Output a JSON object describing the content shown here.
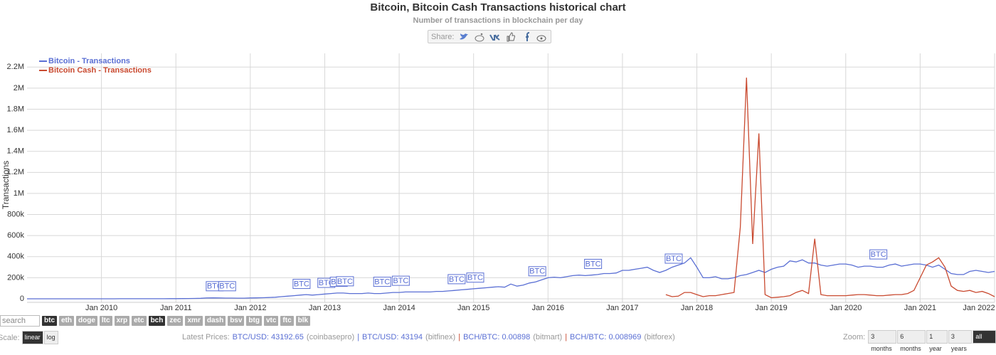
{
  "chart_data": {
    "type": "line",
    "title": "Bitcoin, Bitcoin Cash Transactions historical chart",
    "subtitle": "Number of transactions in blockchain per day",
    "y_label": "Transactions",
    "x": [
      "2009-01",
      "2009-02",
      "2009-03",
      "2009-04",
      "2009-05",
      "2009-06",
      "2009-07",
      "2009-08",
      "2009-09",
      "2009-10",
      "2009-11",
      "2009-12",
      "2010-01",
      "2010-02",
      "2010-03",
      "2010-04",
      "2010-05",
      "2010-06",
      "2010-07",
      "2010-08",
      "2010-09",
      "2010-10",
      "2010-11",
      "2010-12",
      "2011-01",
      "2011-02",
      "2011-03",
      "2011-04",
      "2011-05",
      "2011-06",
      "2011-07",
      "2011-08",
      "2011-09",
      "2011-10",
      "2011-11",
      "2011-12",
      "2012-01",
      "2012-02",
      "2012-03",
      "2012-04",
      "2012-05",
      "2012-06",
      "2012-07",
      "2012-08",
      "2012-09",
      "2012-10",
      "2012-11",
      "2012-12",
      "2013-01",
      "2013-02",
      "2013-03",
      "2013-04",
      "2013-05",
      "2013-06",
      "2013-07",
      "2013-08",
      "2013-09",
      "2013-10",
      "2013-11",
      "2013-12",
      "2014-01",
      "2014-02",
      "2014-03",
      "2014-04",
      "2014-05",
      "2014-06",
      "2014-07",
      "2014-08",
      "2014-09",
      "2014-10",
      "2014-11",
      "2014-12",
      "2015-01",
      "2015-02",
      "2015-03",
      "2015-04",
      "2015-05",
      "2015-06",
      "2015-07",
      "2015-08",
      "2015-09",
      "2015-10",
      "2015-11",
      "2015-12",
      "2016-01",
      "2016-02",
      "2016-03",
      "2016-04",
      "2016-05",
      "2016-06",
      "2016-07",
      "2016-08",
      "2016-09",
      "2016-10",
      "2016-11",
      "2016-12",
      "2017-01",
      "2017-02",
      "2017-03",
      "2017-04",
      "2017-05",
      "2017-06",
      "2017-07",
      "2017-08",
      "2017-09",
      "2017-10",
      "2017-11",
      "2017-12",
      "2018-01",
      "2018-02",
      "2018-03",
      "2018-04",
      "2018-05",
      "2018-06",
      "2018-07",
      "2018-08",
      "2018-09",
      "2018-10",
      "2018-11",
      "2018-12",
      "2019-01",
      "2019-02",
      "2019-03",
      "2019-04",
      "2019-05",
      "2019-06",
      "2019-07",
      "2019-08",
      "2019-09",
      "2019-10",
      "2019-11",
      "2019-12",
      "2020-01",
      "2020-02",
      "2020-03",
      "2020-04",
      "2020-05",
      "2020-06",
      "2020-07",
      "2020-08",
      "2020-09",
      "2020-10",
      "2020-11",
      "2020-12",
      "2021-01",
      "2021-02",
      "2021-03",
      "2021-04",
      "2021-05",
      "2021-06",
      "2021-07",
      "2021-08",
      "2021-09",
      "2021-10",
      "2021-11",
      "2021-12",
      "2022-01"
    ],
    "series": [
      {
        "name": "Bitcoin - Transactions",
        "color": "#5a6fd4",
        "values": [
          100,
          100,
          100,
          100,
          100,
          100,
          100,
          200,
          200,
          200,
          200,
          300,
          300,
          300,
          300,
          400,
          400,
          500,
          600,
          800,
          900,
          1000,
          1000,
          1200,
          1500,
          2000,
          2500,
          3500,
          5000,
          8000,
          9000,
          8000,
          7000,
          7000,
          6000,
          6000,
          8000,
          9000,
          10000,
          12000,
          15000,
          20000,
          25000,
          30000,
          35000,
          40000,
          35000,
          40000,
          45000,
          50000,
          55000,
          55000,
          50000,
          50000,
          50000,
          55000,
          50000,
          50000,
          55000,
          60000,
          60000,
          65000,
          65000,
          65000,
          65000,
          65000,
          70000,
          70000,
          75000,
          80000,
          85000,
          90000,
          95000,
          100000,
          105000,
          110000,
          115000,
          110000,
          140000,
          120000,
          130000,
          150000,
          160000,
          180000,
          200000,
          205000,
          200000,
          210000,
          220000,
          225000,
          220000,
          225000,
          230000,
          240000,
          240000,
          245000,
          270000,
          270000,
          280000,
          290000,
          300000,
          270000,
          250000,
          270000,
          300000,
          320000,
          340000,
          390000,
          300000,
          200000,
          200000,
          210000,
          190000,
          190000,
          200000,
          220000,
          230000,
          250000,
          270000,
          250000,
          280000,
          300000,
          310000,
          360000,
          350000,
          370000,
          340000,
          340000,
          320000,
          310000,
          320000,
          330000,
          330000,
          320000,
          300000,
          310000,
          310000,
          300000,
          300000,
          320000,
          330000,
          310000,
          320000,
          330000,
          330000,
          320000,
          300000,
          320000,
          280000,
          240000,
          230000,
          230000,
          260000,
          270000,
          260000,
          250000,
          260000
        ]
      },
      {
        "name": "Bitcoin Cash - Transactions",
        "color": "#c94a30",
        "values": [
          null,
          null,
          null,
          null,
          null,
          null,
          null,
          null,
          null,
          null,
          null,
          null,
          null,
          null,
          null,
          null,
          null,
          null,
          null,
          null,
          null,
          null,
          null,
          null,
          null,
          null,
          null,
          null,
          null,
          null,
          null,
          null,
          null,
          null,
          null,
          null,
          null,
          null,
          null,
          null,
          null,
          null,
          null,
          null,
          null,
          null,
          null,
          null,
          null,
          null,
          null,
          null,
          null,
          null,
          null,
          null,
          null,
          null,
          null,
          null,
          null,
          null,
          null,
          null,
          null,
          null,
          null,
          null,
          null,
          null,
          null,
          null,
          null,
          null,
          null,
          null,
          null,
          null,
          null,
          null,
          null,
          null,
          null,
          null,
          null,
          null,
          null,
          null,
          null,
          null,
          null,
          null,
          null,
          null,
          null,
          null,
          null,
          null,
          null,
          null,
          null,
          null,
          null,
          40000,
          20000,
          25000,
          60000,
          60000,
          40000,
          20000,
          30000,
          30000,
          40000,
          50000,
          60000,
          680000,
          2100000,
          520000,
          1570000,
          40000,
          10000,
          15000,
          20000,
          30000,
          60000,
          80000,
          50000,
          570000,
          40000,
          30000,
          30000,
          30000,
          30000,
          35000,
          40000,
          40000,
          35000,
          30000,
          30000,
          35000,
          40000,
          40000,
          50000,
          80000,
          200000,
          320000,
          350000,
          390000,
          300000,
          120000,
          80000,
          70000,
          80000,
          60000,
          70000,
          50000,
          20000
        ]
      }
    ],
    "flags": [
      {
        "x": "2011-06",
        "label": "BTC"
      },
      {
        "x": "2011-08",
        "label": "BTC"
      },
      {
        "x": "2012-08",
        "label": "BTC"
      },
      {
        "x": "2012-12",
        "label": "BTC"
      },
      {
        "x": "2013-02",
        "label": "BTC"
      },
      {
        "x": "2013-03",
        "label": "BTC"
      },
      {
        "x": "2013-09",
        "label": "BTC"
      },
      {
        "x": "2013-12",
        "label": "BTC"
      },
      {
        "x": "2014-09",
        "label": "BTC"
      },
      {
        "x": "2014-12",
        "label": "BTC"
      },
      {
        "x": "2015-10",
        "label": "BTC"
      },
      {
        "x": "2016-07",
        "label": "BTC"
      },
      {
        "x": "2017-08",
        "label": "BTC"
      },
      {
        "x": "2020-05",
        "label": "BTC"
      }
    ],
    "xlim": [
      "2009-01",
      "2022-01"
    ],
    "xticks": [
      {
        "value": "2010-01",
        "label": "Jan 2010"
      },
      {
        "value": "2011-01",
        "label": "Jan 2011"
      },
      {
        "value": "2012-01",
        "label": "Jan 2012"
      },
      {
        "value": "2013-01",
        "label": "Jan 2013"
      },
      {
        "value": "2014-01",
        "label": "Jan 2014"
      },
      {
        "value": "2015-01",
        "label": "Jan 2015"
      },
      {
        "value": "2016-01",
        "label": "Jan 2016"
      },
      {
        "value": "2017-01",
        "label": "Jan 2017"
      },
      {
        "value": "2018-01",
        "label": "Jan 2018"
      },
      {
        "value": "2019-01",
        "label": "Jan 2019"
      },
      {
        "value": "2020-01",
        "label": "Jan 2020"
      },
      {
        "value": "2021-01",
        "label": "Jan 2021"
      },
      {
        "value": "2022-01",
        "label": "Jan 2022"
      }
    ],
    "ylim": [
      0,
      2330000
    ],
    "yticks": [
      0,
      {
        "value": 200000,
        "label": "200k"
      },
      {
        "value": 400000,
        "label": "400k"
      },
      {
        "value": 600000,
        "label": "600k"
      },
      {
        "value": 800000,
        "label": "800k"
      },
      {
        "value": 1000000,
        "label": "1M"
      },
      {
        "value": 1200000,
        "label": "1.2M"
      },
      {
        "value": 1400000,
        "label": "1.4M"
      },
      {
        "value": 1600000,
        "label": "1.6M"
      },
      {
        "value": 1800000,
        "label": "1.8M"
      },
      {
        "value": 2000000,
        "label": "2M"
      },
      {
        "value": 2200000,
        "label": "2.2M"
      }
    ],
    "grid": true,
    "legend": "top-left"
  },
  "share_label": "Share:",
  "search_placeholder": "search",
  "coins": [
    {
      "label": "btc",
      "active": true
    },
    {
      "label": "eth",
      "active": false
    },
    {
      "label": "doge",
      "active": false
    },
    {
      "label": "ltc",
      "active": false
    },
    {
      "label": "xrp",
      "active": false
    },
    {
      "label": "etc",
      "active": false
    },
    {
      "label": "bch",
      "active": true
    },
    {
      "label": "zec",
      "active": false
    },
    {
      "label": "xmr",
      "active": false
    },
    {
      "label": "dash",
      "active": false
    },
    {
      "label": "bsv",
      "active": false
    },
    {
      "label": "btg",
      "active": false
    },
    {
      "label": "vtc",
      "active": false
    },
    {
      "label": "ftc",
      "active": false
    },
    {
      "label": "blk",
      "active": false
    }
  ],
  "scale_label": "Scale:",
  "scales": [
    {
      "label": "linear",
      "active": true
    },
    {
      "label": "log",
      "active": false
    }
  ],
  "prices_label": "Latest Prices:",
  "price_separator": "|",
  "prices": [
    {
      "pair": "BTC/USD: 43192.65",
      "source": "(coinbasepro)"
    },
    {
      "pair": "BTC/USD: 43194",
      "source": "(bitfinex)"
    },
    {
      "pair": "BCH/BTC: 0.00898",
      "source": "(bitmart)"
    },
    {
      "pair": "BCH/BTC: 0.008969",
      "source": "(bitforex)"
    }
  ],
  "zoom_label": "Zoom:",
  "zooms": [
    {
      "label": "3 months",
      "active": false
    },
    {
      "label": "6 months",
      "active": false
    },
    {
      "label": "1 year",
      "active": false
    },
    {
      "label": "3 years",
      "active": false
    },
    {
      "label": "all time",
      "active": true
    }
  ]
}
